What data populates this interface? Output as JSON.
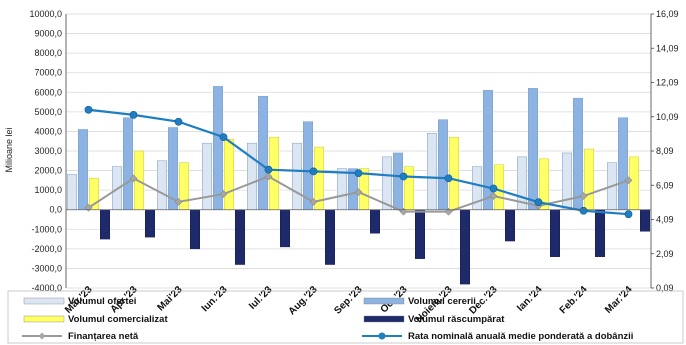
{
  "chart_data": {
    "type": "bar",
    "categories": [
      "Mar.'23",
      "Apr.'23",
      "Mai'23",
      "Iun.'23",
      "Iul.'23",
      "Aug.'23",
      "Sep.'23",
      "Oct.'23",
      "Noiem.'23",
      "Dec.'23",
      "Ian.'24",
      "Feb.'24",
      "Mar.'24"
    ],
    "ylabel": "Milioane lei",
    "ylim": [
      -4000,
      10000
    ],
    "y2lim": [
      0.09,
      16.09
    ],
    "left_ticks": [
      "10000,0",
      "9000,0",
      "8000,0",
      "7000,0",
      "6000,0",
      "5000,0",
      "4000,0",
      "3000,0",
      "2000,0",
      "1000,0",
      "0,0",
      "-1000,0",
      "-2000,0",
      "-3000,0",
      "-4000,0"
    ],
    "right_ticks": [
      "16,09",
      "14,09",
      "12,09",
      "10,09",
      "8,09",
      "6,09",
      "4,09",
      "2,09",
      "0,09"
    ],
    "series": [
      {
        "name": "Volumul ofertei",
        "kind": "bar",
        "color": "#dce6f2",
        "values": [
          1800,
          2200,
          2500,
          3400,
          3400,
          3400,
          2100,
          2700,
          3900,
          2200,
          2700,
          2900,
          2400
        ]
      },
      {
        "name": "Volumul cererii",
        "kind": "bar",
        "color": "#8db3e2",
        "values": [
          4100,
          4700,
          4200,
          6300,
          5800,
          4500,
          2100,
          2900,
          4600,
          6100,
          6200,
          5700,
          4700
        ]
      },
      {
        "name": "Volumul comercializat",
        "kind": "bar",
        "color": "#ffff66",
        "values": [
          1600,
          3000,
          2400,
          3600,
          3700,
          3200,
          2100,
          2200,
          3700,
          2300,
          2600,
          3100,
          2700
        ]
      },
      {
        "name": "Volumul răscumpărat",
        "kind": "bar",
        "color": "#1f2a6b",
        "values": [
          -1500,
          -1400,
          -2000,
          -2800,
          -1900,
          -2800,
          -1200,
          -2500,
          -3800,
          -1600,
          -2400,
          -2400,
          -1100
        ]
      },
      {
        "name": "Finanțarea netă",
        "kind": "line",
        "axis": "left",
        "color": "#999999",
        "values": [
          100,
          1600,
          400,
          800,
          1700,
          400,
          900,
          -100,
          -100,
          700,
          200,
          700,
          1500
        ]
      },
      {
        "name": "Rata nominală anuală medie ponderată a dobânzii",
        "kind": "line",
        "axis": "right",
        "color": "#1f7ec2",
        "values": [
          10.5,
          10.2,
          9.8,
          8.9,
          7.0,
          6.9,
          6.8,
          6.6,
          6.5,
          5.9,
          5.1,
          4.6,
          4.4
        ]
      }
    ],
    "grid": true,
    "legend_position": "bottom"
  }
}
